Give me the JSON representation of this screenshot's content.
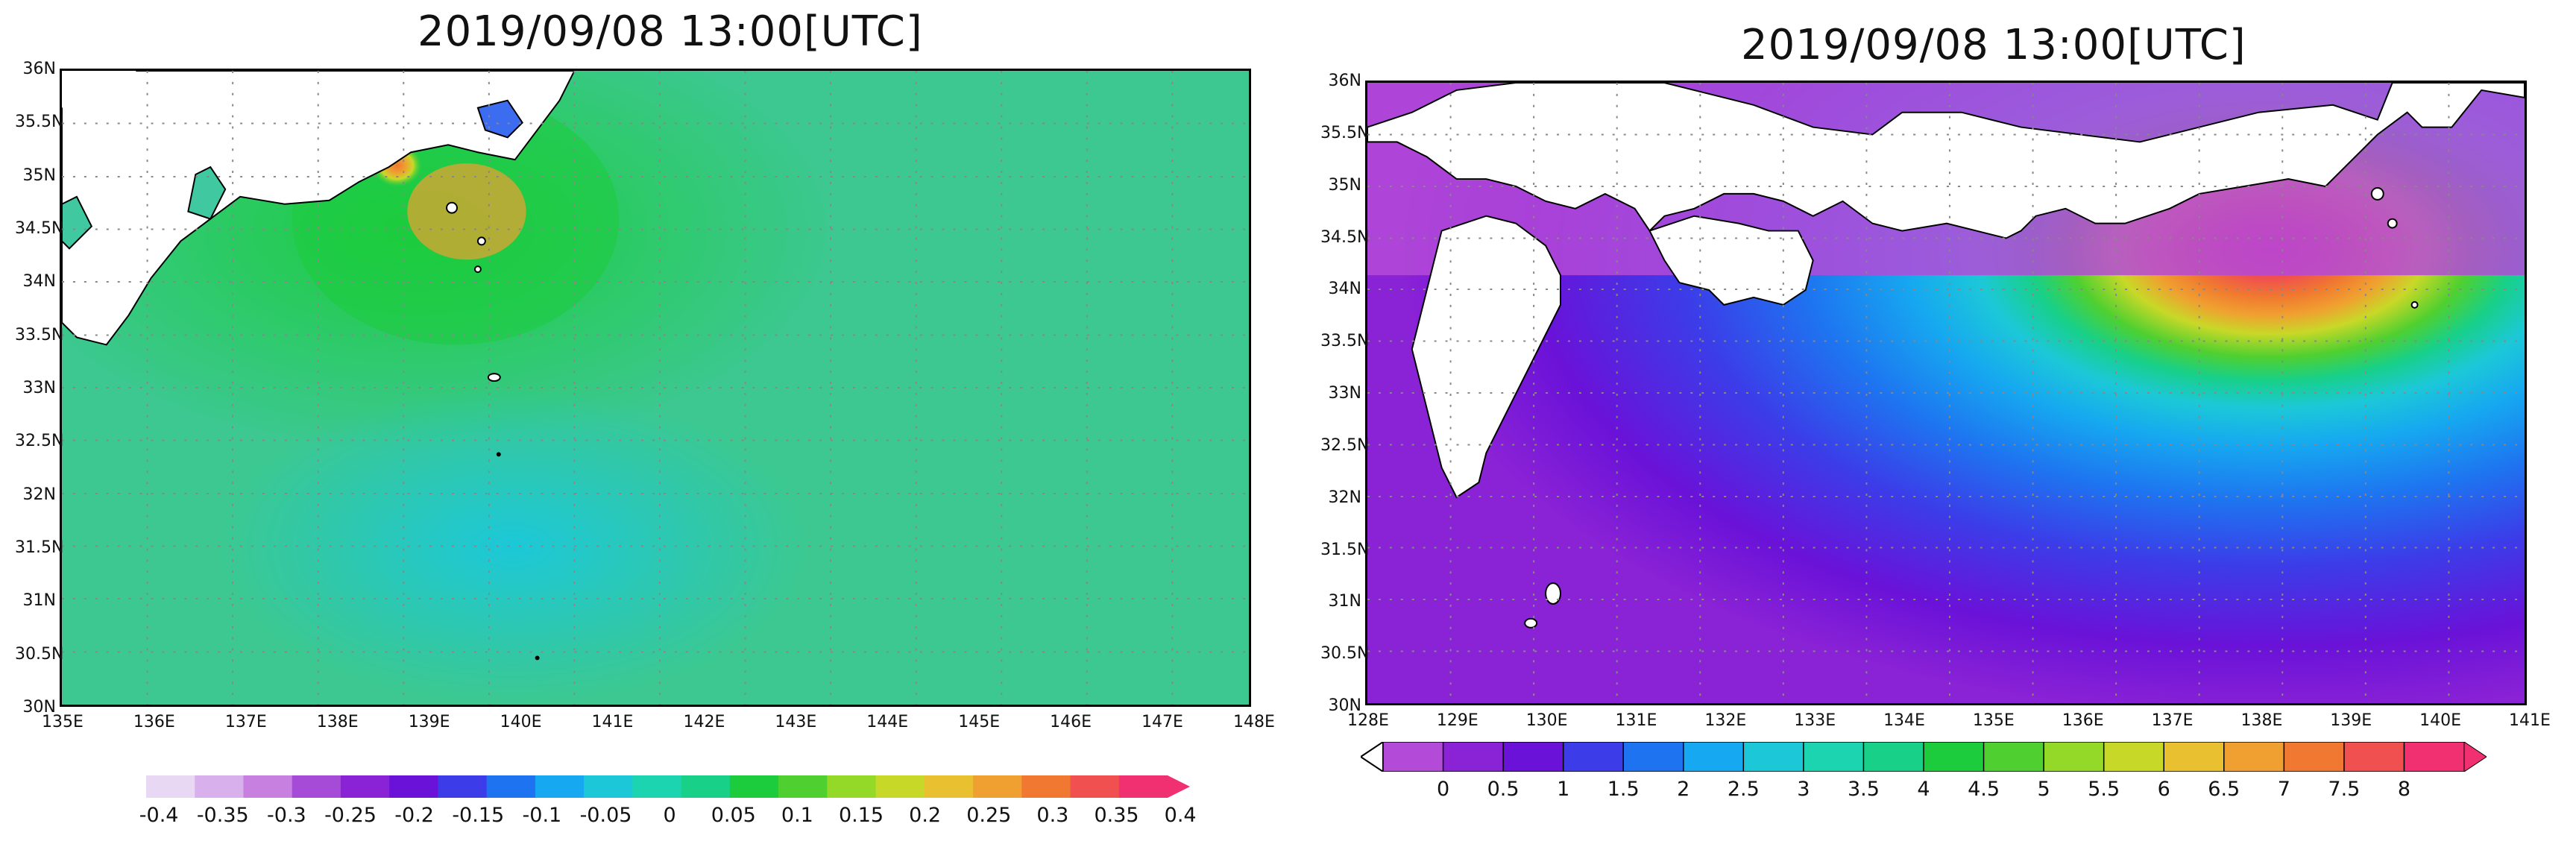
{
  "left_map": {
    "title": "2019/09/08 13:00[UTC]",
    "lat_labels": [
      "36N",
      "35.5N",
      "35N",
      "34.5N",
      "34N",
      "33.5N",
      "33N",
      "32.5N",
      "32N",
      "31.5N",
      "31N",
      "30.5N",
      "30N"
    ],
    "lon_labels": [
      "135E",
      "136E",
      "137E",
      "138E",
      "139E",
      "140E",
      "141E",
      "142E",
      "143E",
      "144E",
      "145E",
      "146E",
      "147E",
      "148E"
    ],
    "colorbar": {
      "labels": [
        "-0.4",
        "-0.35",
        "-0.3",
        "-0.25",
        "-0.2",
        "-0.15",
        "-0.1",
        "-0.05",
        "0",
        "0.05",
        "0.1",
        "0.15",
        "0.2",
        "0.25",
        "0.3",
        "0.35",
        "0.4"
      ],
      "colors": [
        "#e8d8f4",
        "#d8b0ec",
        "#c880e0",
        "#a64ad8",
        "#8a22d6",
        "#6a12d8",
        "#3c3ce8",
        "#1e74f0",
        "#16a8f0",
        "#1cc8d8",
        "#1cd4b0",
        "#18d088",
        "#1ccc3c",
        "#50d030",
        "#94d828",
        "#c8d828",
        "#e8c030",
        "#f0a030",
        "#f07830",
        "#f05050",
        "#f03070"
      ]
    }
  },
  "right_map": {
    "title": "2019/09/08 13:00[UTC]",
    "lat_labels": [
      "36N",
      "35.5N",
      "35N",
      "34.5N",
      "34N",
      "33.5N",
      "33N",
      "32.5N",
      "32N",
      "31.5N",
      "31N",
      "30.5N",
      "30N"
    ],
    "lon_labels": [
      "128E",
      "129E",
      "130E",
      "131E",
      "132E",
      "133E",
      "134E",
      "135E",
      "136E",
      "137E",
      "138E",
      "139E",
      "140E",
      "141E"
    ],
    "colorbar": {
      "labels": [
        "0",
        "0.5",
        "1",
        "1.5",
        "2",
        "2.5",
        "3",
        "3.5",
        "4",
        "4.5",
        "5",
        "5.5",
        "6",
        "6.5",
        "7",
        "7.5",
        "8"
      ],
      "colors": [
        "#b44ad8",
        "#8a22d6",
        "#6a12d8",
        "#3c3ce8",
        "#1e74f0",
        "#16a8f0",
        "#1cc8d8",
        "#1cd4b0",
        "#18d088",
        "#1ccc3c",
        "#50d030",
        "#94d828",
        "#c8d828",
        "#e8c030",
        "#f0a030",
        "#f07830",
        "#f05050",
        "#f03070"
      ]
    }
  }
}
